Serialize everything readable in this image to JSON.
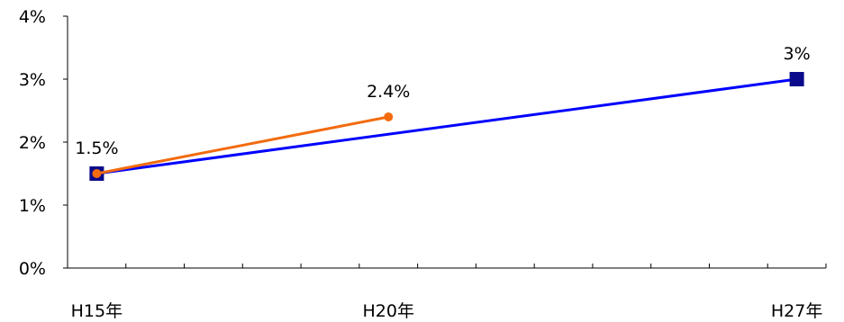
{
  "chart_data": {
    "type": "line",
    "x": [
      "H15年",
      "H20年",
      "H27年"
    ],
    "x_positions_years": [
      15,
      20,
      27
    ],
    "y_ticks": [
      "0%",
      "1%",
      "2%",
      "3%",
      "4%"
    ],
    "ylim": [
      0,
      4
    ],
    "xlim_years": [
      14.5,
      27.5
    ],
    "grid": false,
    "legend": "none",
    "series": [
      {
        "color": "#0000ff",
        "marker": "square",
        "marker_color": "#0a0a8a",
        "points": [
          {
            "x": 15,
            "y": 1.5,
            "label": "1.5%"
          },
          {
            "x": 27,
            "y": 3.0,
            "label": "3%"
          }
        ]
      },
      {
        "color": "#f26b0f",
        "marker": "circle",
        "marker_color": "#f26b0f",
        "points": [
          {
            "x": 15,
            "y": 1.5,
            "label": ""
          },
          {
            "x": 20,
            "y": 2.4,
            "label": "2.4%"
          }
        ]
      }
    ]
  }
}
